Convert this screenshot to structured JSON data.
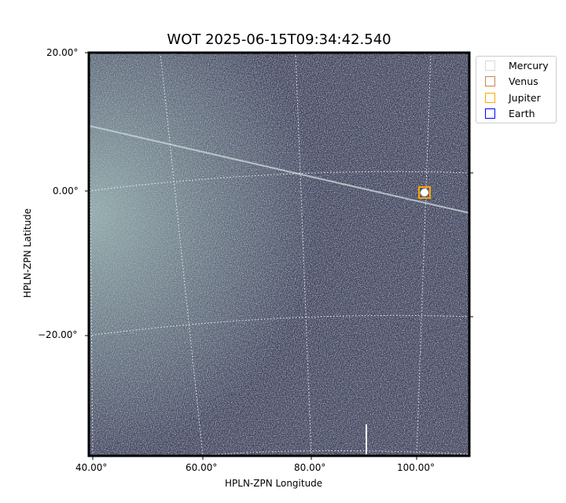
{
  "chart_data": {
    "type": "image",
    "title": "WOT 2025-06-15T09:34:42.540",
    "xlabel": "HPLN-ZPN Longitude",
    "ylabel": "HPLN-ZPN Latitude",
    "x_ticks": [
      "40.00°",
      "60.00°",
      "80.00°",
      "100.00°"
    ],
    "y_ticks": [
      "20.00°",
      "0.00°",
      "−20.00°"
    ],
    "grid": true,
    "colormap": "bone",
    "legend_placement": "outside-top-right",
    "legend": [
      {
        "name": "Mercury",
        "color": "#d9d9d9"
      },
      {
        "name": "Venus",
        "color": "#c8844a"
      },
      {
        "name": "Jupiter",
        "color": "#ffa500"
      },
      {
        "name": "Earth",
        "color": "#0000ff"
      }
    ],
    "markers": [
      {
        "name": "Jupiter",
        "lon": 101.5,
        "lat": 0.0,
        "color": "#ffa500"
      }
    ]
  }
}
